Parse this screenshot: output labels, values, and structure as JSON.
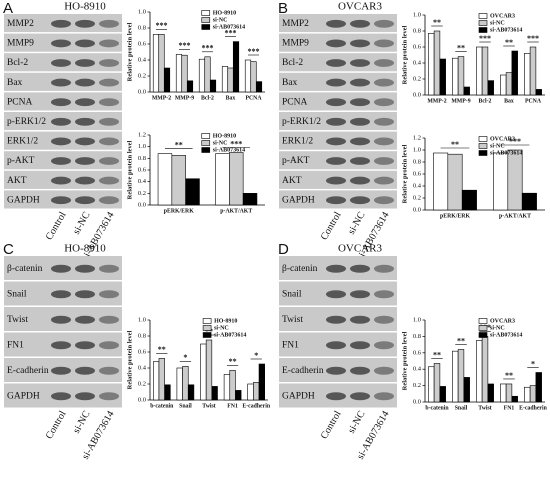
{
  "panels": [
    {
      "letter": "A",
      "cell_line": "HO-8910",
      "blot_rows": [
        "MMP2",
        "MMP9",
        "Bcl-2",
        "Bax",
        "PCNA",
        "p-ERK1/2",
        "ERK1/2",
        "p-AKT",
        "AKT",
        "GAPDH"
      ],
      "lanes": [
        "Control",
        "si-NC",
        "si-AB073614"
      ]
    },
    {
      "letter": "B",
      "cell_line": "OVCAR3",
      "blot_rows": [
        "MMP2",
        "MMP9",
        "Bcl-2",
        "Bax",
        "PCNA",
        "p-ERK1/2",
        "ERK1/2",
        "p-AKT",
        "AKT",
        "GAPDH"
      ],
      "lanes": [
        "Control",
        "si-NC",
        "si-AB073614"
      ]
    },
    {
      "letter": "C",
      "cell_line": "HO-8910",
      "blot_rows": [
        "β-catenin",
        "Snail",
        "Twist",
        "FN1",
        "E-cadherin",
        "GAPDH"
      ],
      "lanes": [
        "Control",
        "si-NC",
        "si-AB073614"
      ]
    },
    {
      "letter": "D",
      "cell_line": "OVCAR3",
      "blot_rows": [
        "β-catenin",
        "Snail",
        "Twist",
        "FN1",
        "E-cadherin",
        "GAPDH"
      ],
      "lanes": [
        "Control",
        "si-NC",
        "si-AB073614"
      ]
    }
  ],
  "chart_data": [
    {
      "type": "bar",
      "y_label": "Relative protein level",
      "categories": [
        "MMP-2",
        "MMP-9",
        "Bcl-2",
        "Bax",
        "PCNA"
      ],
      "series": [
        {
          "name": "HO-8910",
          "color": "#ffffff",
          "values": [
            0.72,
            0.47,
            0.41,
            0.32,
            0.4
          ]
        },
        {
          "name": "si-NC",
          "color": "#cccccc",
          "values": [
            0.72,
            0.46,
            0.44,
            0.3,
            0.38
          ]
        },
        {
          "name": "si-AB073614",
          "color": "#000000",
          "values": [
            0.3,
            0.14,
            0.15,
            0.63,
            0.13
          ]
        }
      ],
      "annotations": [
        "***",
        "***",
        "***",
        "***",
        "***"
      ],
      "ylim": [
        0,
        1
      ],
      "yticks": [
        {
          "value": 0,
          "label": "0.0"
        },
        0.2,
        0.4,
        0.6,
        0.8,
        {
          "value": 1,
          "label": "1.0"
        }
      ]
    },
    {
      "type": "bar",
      "y_label": "Relative protein level",
      "categories": [
        "pERK/ERK",
        "p-AKT/AKT"
      ],
      "series": [
        {
          "name": "HO-8910",
          "color": "#ffffff",
          "values": [
            0.88,
            0.88
          ]
        },
        {
          "name": "si-NC",
          "color": "#cccccc",
          "values": [
            0.85,
            0.9
          ]
        },
        {
          "name": "si-AB073614",
          "color": "#000000",
          "values": [
            0.45,
            0.2
          ]
        }
      ],
      "annotations": [
        "**",
        "***"
      ],
      "ylim": [
        0,
        1.2
      ],
      "yticks": [
        {
          "value": 0,
          "label": "0.0"
        },
        0.2,
        0.4,
        0.6,
        0.8,
        {
          "value": 1,
          "label": "1.0"
        },
        1.2
      ]
    },
    {
      "type": "bar",
      "y_label": "Relative protein level",
      "categories": [
        "MMP-2",
        "MMP-9",
        "Bcl-2",
        "Bax",
        "PCNA"
      ],
      "series": [
        {
          "name": "OVCAR3",
          "color": "#ffffff",
          "values": [
            0.77,
            0.46,
            0.6,
            0.25,
            0.52
          ]
        },
        {
          "name": "si-NC",
          "color": "#cccccc",
          "values": [
            0.8,
            0.48,
            0.6,
            0.28,
            0.6
          ]
        },
        {
          "name": "si-AB073614",
          "color": "#000000",
          "values": [
            0.45,
            0.1,
            0.18,
            0.55,
            0.07
          ]
        }
      ],
      "annotations": [
        "**",
        "**",
        "***",
        "**",
        "***"
      ],
      "ylim": [
        0,
        1
      ],
      "yticks": [
        {
          "value": 0,
          "label": "0.0"
        },
        0.2,
        0.4,
        0.6,
        0.8,
        {
          "value": 1,
          "label": "1.0"
        }
      ]
    },
    {
      "type": "bar",
      "y_label": "Relative protein level",
      "categories": [
        "pERK/ERK",
        "p-AKT/AKT"
      ],
      "series": [
        {
          "name": "OVCAR3",
          "color": "#ffffff",
          "values": [
            0.95,
            0.95
          ]
        },
        {
          "name": "si-NC",
          "color": "#cccccc",
          "values": [
            0.93,
            1.0
          ]
        },
        {
          "name": "si-AB073614",
          "color": "#000000",
          "values": [
            0.33,
            0.28
          ]
        }
      ],
      "annotations": [
        "**",
        "***"
      ],
      "ylim": [
        0,
        1.2
      ],
      "yticks": [
        {
          "value": 0,
          "label": "0.0"
        },
        0.2,
        0.4,
        0.6,
        0.8,
        {
          "value": 1,
          "label": "1.0"
        },
        1.2
      ]
    },
    {
      "type": "bar",
      "y_label": "Relative protein level",
      "categories": [
        "b-catenin",
        "Snail",
        "Twist",
        "FN1",
        "E-cadherin"
      ],
      "series": [
        {
          "name": "HO-8910",
          "color": "#ffffff",
          "values": [
            0.48,
            0.4,
            0.7,
            0.32,
            0.2
          ]
        },
        {
          "name": "si-NC",
          "color": "#cccccc",
          "values": [
            0.52,
            0.42,
            0.75,
            0.37,
            0.22
          ]
        },
        {
          "name": "si-AB073614",
          "color": "#000000",
          "values": [
            0.19,
            0.19,
            0.17,
            0.12,
            0.45
          ]
        }
      ],
      "annotations": [
        "**",
        "*",
        "**",
        "**",
        "*"
      ],
      "ylim": [
        0,
        1
      ],
      "yticks": [
        {
          "value": 0,
          "label": "0.0"
        },
        0.2,
        0.4,
        0.6,
        0.8,
        {
          "value": 1,
          "label": "1.0"
        }
      ]
    },
    {
      "type": "bar",
      "y_label": "Relative protein level",
      "categories": [
        "b-catenin",
        "Snail",
        "Twist",
        "FN1",
        "E-cadherin"
      ],
      "series": [
        {
          "name": "OVCAR3",
          "color": "#ffffff",
          "values": [
            0.43,
            0.62,
            0.75,
            0.22,
            0.18
          ]
        },
        {
          "name": "si-NC",
          "color": "#cccccc",
          "values": [
            0.47,
            0.64,
            0.8,
            0.22,
            0.2
          ]
        },
        {
          "name": "si-AB073614",
          "color": "#000000",
          "values": [
            0.19,
            0.3,
            0.22,
            0.07,
            0.36
          ]
        }
      ],
      "annotations": [
        "**",
        "**",
        "***",
        "**",
        "*"
      ],
      "ylim": [
        0,
        1
      ],
      "yticks": [
        {
          "value": 0,
          "label": "0.0"
        },
        0.2,
        0.4,
        0.6,
        0.8,
        {
          "value": 1,
          "label": "1.0"
        }
      ]
    }
  ]
}
